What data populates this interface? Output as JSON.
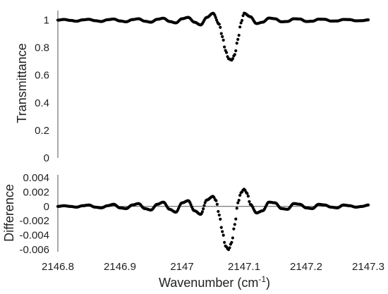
{
  "chart_data": [
    {
      "type": "scatter",
      "title": "",
      "xlabel": "",
      "ylabel": "Transmittance",
      "xlim": [
        2146.8,
        2147.3
      ],
      "ylim": [
        0,
        1.1
      ],
      "yticks": [
        "0",
        "0.2",
        "0.4",
        "0.6",
        "0.8",
        "1"
      ],
      "grid": false,
      "series": [
        {
          "x": [
            2146.8,
            2146.81,
            2146.82,
            2146.83,
            2146.84,
            2146.85,
            2146.86,
            2146.87,
            2146.88,
            2146.89,
            2146.9,
            2146.91,
            2146.92,
            2146.93,
            2146.94,
            2146.95,
            2146.96,
            2146.97,
            2146.98,
            2146.99,
            2147.0,
            2147.01,
            2147.02,
            2147.03,
            2147.04,
            2147.05,
            2147.06,
            2147.065,
            2147.07,
            2147.075,
            2147.08,
            2147.085,
            2147.09,
            2147.095,
            2147.1,
            2147.11,
            2147.12,
            2147.13,
            2147.14,
            2147.15,
            2147.16,
            2147.17,
            2147.18,
            2147.19,
            2147.2,
            2147.21,
            2147.22,
            2147.23,
            2147.24,
            2147.25,
            2147.26,
            2147.27,
            2147.28,
            2147.29,
            2147.3
          ],
          "y": [
            1.0,
            1.005,
            0.998,
            0.992,
            1.002,
            1.006,
            0.996,
            0.99,
            1.003,
            1.008,
            0.994,
            0.988,
            1.004,
            1.01,
            0.992,
            0.985,
            1.006,
            1.014,
            0.99,
            0.98,
            1.01,
            1.02,
            0.985,
            0.965,
            1.02,
            1.05,
            0.97,
            0.88,
            0.78,
            0.72,
            0.71,
            0.75,
            0.86,
            0.98,
            1.05,
            1.025,
            0.975,
            0.985,
            1.015,
            1.01,
            0.988,
            0.99,
            1.01,
            1.008,
            0.99,
            0.992,
            1.007,
            1.006,
            0.993,
            0.994,
            1.005,
            1.004,
            0.995,
            0.996,
            1.002
          ]
        }
      ]
    },
    {
      "type": "scatter",
      "title": "",
      "xlabel": "Wavenumber (cm-1)",
      "ylabel": "Difference",
      "xlim": [
        2146.8,
        2147.3
      ],
      "ylim": [
        -0.006,
        0.004
      ],
      "xticks": [
        "2146.8",
        "2146.9",
        "2147",
        "2147.1",
        "2147.2",
        "2147.3"
      ],
      "yticks": [
        "-0.006",
        "-0.004",
        "-0.002",
        "0",
        "0.002",
        "0.004"
      ],
      "grid": false,
      "series": [
        {
          "x": [
            2146.8,
            2146.81,
            2146.82,
            2146.83,
            2146.84,
            2146.85,
            2146.86,
            2146.87,
            2146.88,
            2146.89,
            2146.9,
            2146.91,
            2146.92,
            2146.93,
            2146.94,
            2146.95,
            2146.96,
            2146.97,
            2146.98,
            2146.99,
            2147.0,
            2147.01,
            2147.02,
            2147.03,
            2147.04,
            2147.05,
            2147.055,
            2147.06,
            2147.065,
            2147.07,
            2147.075,
            2147.08,
            2147.085,
            2147.09,
            2147.095,
            2147.1,
            2147.105,
            2147.11,
            2147.12,
            2147.13,
            2147.14,
            2147.15,
            2147.16,
            2147.17,
            2147.18,
            2147.19,
            2147.2,
            2147.21,
            2147.22,
            2147.23,
            2147.24,
            2147.25,
            2147.26,
            2147.27,
            2147.28,
            2147.29,
            2147.3
          ],
          "y": [
            0.0,
            0.0001,
            0.0,
            -0.0001,
            0.0001,
            0.0002,
            -0.0001,
            -0.0002,
            0.0001,
            0.0003,
            -0.0002,
            -0.0003,
            0.0002,
            0.0004,
            -0.0003,
            -0.0005,
            0.0003,
            0.0006,
            -0.0004,
            -0.0008,
            0.0005,
            0.0008,
            -0.0006,
            -0.0011,
            0.0009,
            0.0014,
            0.0008,
            -0.0012,
            -0.0035,
            -0.0055,
            -0.006,
            -0.005,
            -0.0025,
            0.0005,
            0.0019,
            0.0024,
            0.0018,
            0.0003,
            -0.0009,
            -0.0006,
            0.0006,
            0.0005,
            -0.0003,
            -0.0004,
            0.0004,
            0.0003,
            -0.0002,
            -0.0003,
            0.0003,
            0.0002,
            -0.0001,
            -0.0002,
            0.0002,
            0.0001,
            -0.0001,
            0.0,
            0.0002
          ]
        }
      ]
    }
  ]
}
